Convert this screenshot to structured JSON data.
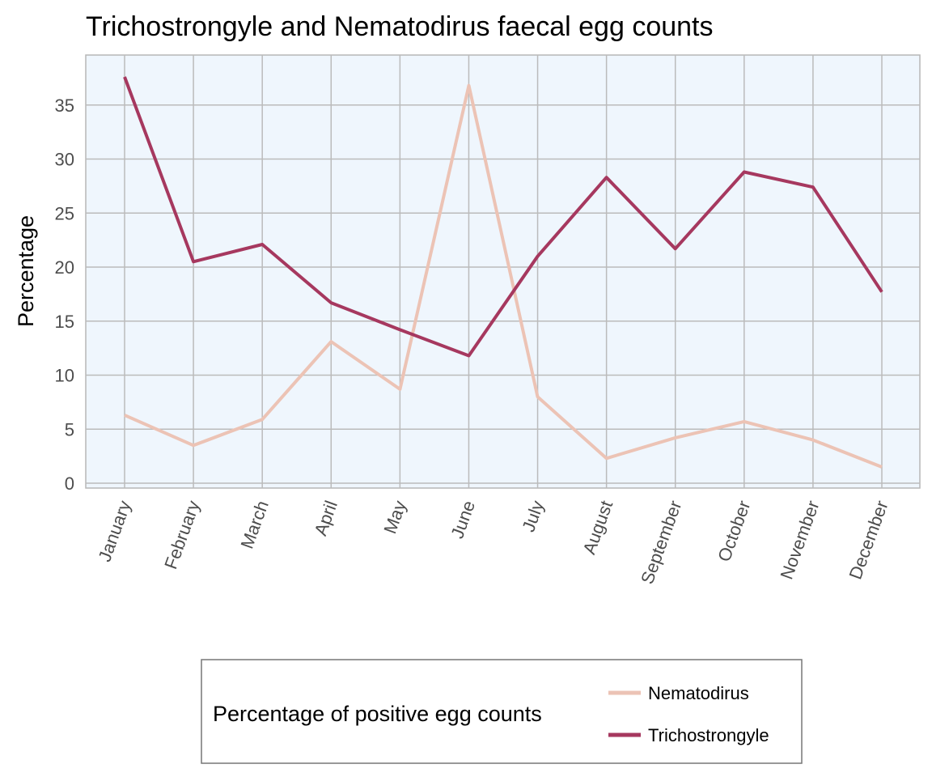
{
  "chart_data": {
    "type": "line",
    "title": "Trichostrongyle and Nematodirus faecal egg counts",
    "xlabel": "",
    "ylabel": "Percentage",
    "categories": [
      "January",
      "February",
      "March",
      "April",
      "May",
      "June",
      "July",
      "August",
      "September",
      "October",
      "November",
      "December"
    ],
    "ylim": [
      0,
      38.5
    ],
    "yticks": [
      0,
      5,
      10,
      15,
      20,
      25,
      30,
      35
    ],
    "grid": true,
    "legend": {
      "title": "Percentage of positive egg counts",
      "placement": "bottom"
    },
    "series": [
      {
        "name": "Nematodirus",
        "color": "#ecc3b5",
        "values": [
          6.3,
          3.5,
          5.9,
          13.1,
          8.7,
          36.8,
          8.0,
          2.3,
          4.2,
          5.7,
          4.0,
          1.5
        ]
      },
      {
        "name": "Trichostrongyle",
        "color": "#a6385f",
        "values": [
          37.6,
          20.5,
          22.1,
          16.7,
          14.2,
          11.8,
          21.0,
          28.3,
          21.7,
          28.8,
          27.4,
          17.7
        ]
      }
    ]
  },
  "colors": {
    "panel_background": "#eff6fd",
    "grid": "#bbbbbb"
  }
}
